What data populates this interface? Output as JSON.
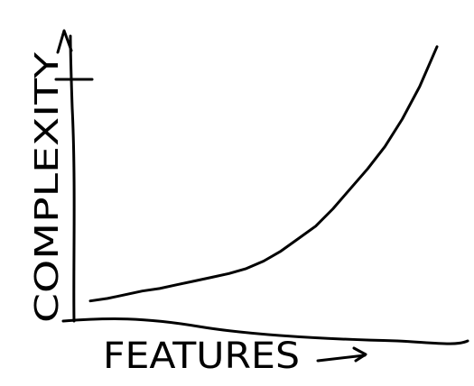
{
  "chart_data": {
    "type": "line",
    "title": "",
    "xlabel": "FEATURES",
    "ylabel": "COMPLEXITY",
    "grid": false,
    "legend": "none",
    "x": [
      0,
      0.5,
      1,
      1.5,
      2,
      2.5,
      3,
      3.5,
      4,
      4.5,
      5,
      5.5,
      6,
      6.5,
      7,
      7.5,
      8,
      8.5,
      9,
      9.5,
      10
    ],
    "series": [
      {
        "values": [
          0.3,
          0.4,
          0.55,
          0.7,
          0.8,
          0.95,
          1.1,
          1.25,
          1.4,
          1.6,
          1.9,
          2.3,
          2.8,
          3.3,
          4.0,
          4.8,
          5.6,
          6.5,
          7.6,
          8.9,
          10.5
        ]
      }
    ],
    "xlim": [
      0,
      10
    ],
    "ylim": [
      0,
      11
    ],
    "colors": {
      "ink": "#000000",
      "background": "#ffffff"
    }
  }
}
